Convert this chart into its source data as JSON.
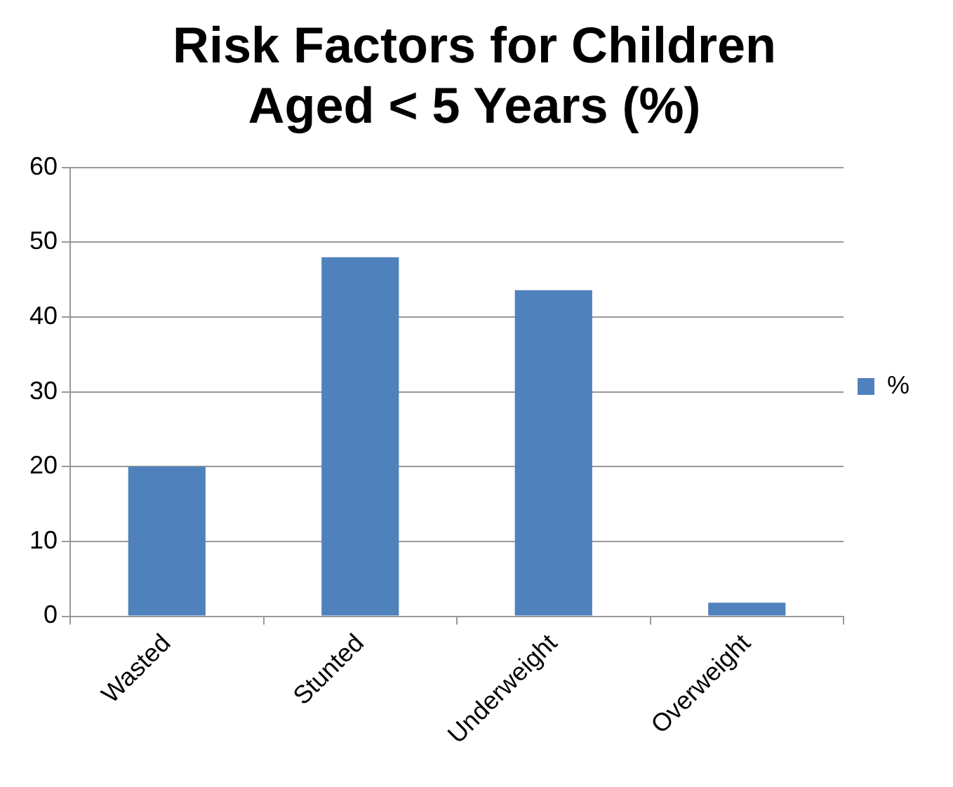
{
  "chart_data": {
    "type": "bar",
    "title": "Risk Factors for Children Aged < 5 Years (%)",
    "categories": [
      "Wasted",
      "Stunted",
      "Underweight",
      "Overweight"
    ],
    "series": [
      {
        "name": "%",
        "color": "#4f81bd",
        "values": [
          20,
          48,
          43.6,
          1.8
        ]
      }
    ],
    "ylim": [
      0,
      60
    ],
    "yticks": [
      0,
      10,
      20,
      30,
      40,
      50,
      60
    ],
    "grid": "y",
    "legend": "right"
  }
}
